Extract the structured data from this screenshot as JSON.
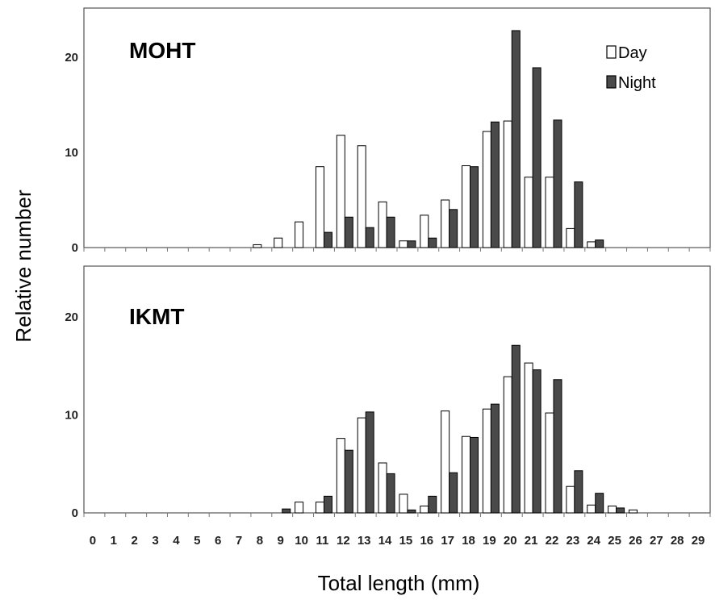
{
  "chart_data": {
    "type": "bar",
    "xlabel": "Total length (mm)",
    "ylabel": "Relative number",
    "categories": [
      "0",
      "1",
      "2",
      "3",
      "4",
      "5",
      "6",
      "7",
      "8",
      "9",
      "10",
      "11",
      "12",
      "13",
      "14",
      "15",
      "16",
      "17",
      "18",
      "19",
      "20",
      "21",
      "22",
      "23",
      "24",
      "25",
      "26",
      "27",
      "28",
      "29"
    ],
    "ylim": [
      0,
      25
    ],
    "yticks": [
      "0",
      "10",
      "20"
    ],
    "legend": {
      "position": "top-right",
      "entries": [
        "Day",
        "Night"
      ]
    },
    "colors": {
      "day_fill": "#ffffff",
      "night_fill": "#4a4a4a",
      "edge": "#000000"
    },
    "panels": [
      {
        "label": "MOHT",
        "series": [
          {
            "name": "Day",
            "values": [
              0,
              0,
              0,
              0,
              0,
              0,
              0,
              0,
              0.3,
              1.0,
              2.7,
              8.5,
              11.8,
              10.7,
              4.8,
              0.7,
              3.4,
              5.0,
              8.6,
              12.2,
              13.3,
              7.4,
              7.4,
              2.0,
              0.6,
              0,
              0,
              0,
              0,
              0
            ]
          },
          {
            "name": "Night",
            "values": [
              0,
              0,
              0,
              0,
              0,
              0,
              0,
              0,
              0,
              0,
              0,
              1.6,
              3.2,
              2.1,
              3.2,
              0.7,
              1.0,
              4.0,
              8.5,
              13.2,
              22.8,
              18.9,
              13.4,
              6.9,
              0.8,
              0,
              0,
              0,
              0,
              0
            ]
          }
        ]
      },
      {
        "label": "IKMT",
        "series": [
          {
            "name": "Day",
            "values": [
              0,
              0,
              0,
              0,
              0,
              0,
              0,
              0,
              0,
              0,
              1.1,
              1.1,
              7.6,
              9.7,
              5.1,
              1.9,
              0.7,
              10.4,
              7.8,
              10.6,
              13.9,
              15.3,
              10.2,
              2.7,
              0.8,
              0.7,
              0.3,
              0,
              0,
              0
            ]
          },
          {
            "name": "Night",
            "values": [
              0,
              0,
              0,
              0,
              0,
              0,
              0,
              0,
              0,
              0.4,
              0,
              1.7,
              6.4,
              10.3,
              4.0,
              0.3,
              1.7,
              4.1,
              7.7,
              11.1,
              17.1,
              14.6,
              13.6,
              4.3,
              2.0,
              0.5,
              0,
              0,
              0,
              0
            ]
          }
        ]
      }
    ]
  }
}
